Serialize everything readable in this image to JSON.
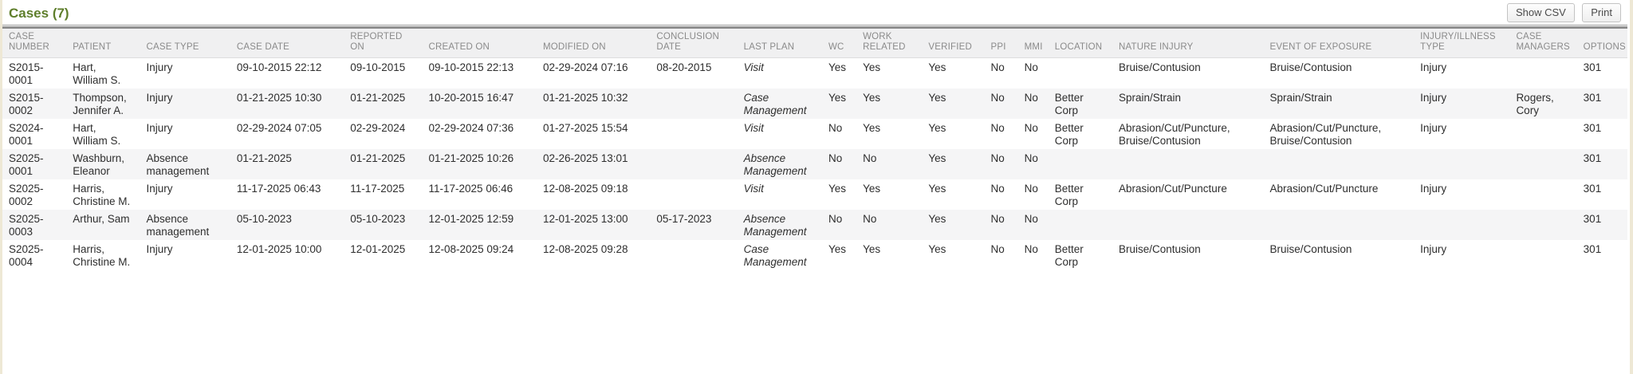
{
  "page": {
    "title": "Cases (7)"
  },
  "toolbar": {
    "show_csv_label": "Show CSV",
    "print_label": "Print"
  },
  "colors": {
    "title_green": "#5e7e2b",
    "header_text": "#8a8a8a",
    "row_stripe": "#f5f5f6",
    "edge_border": "#eee8d5"
  },
  "table": {
    "columns": [
      {
        "id": "case_number",
        "label": "CASE NUMBER"
      },
      {
        "id": "patient",
        "label": "PATIENT"
      },
      {
        "id": "case_type",
        "label": "CASE TYPE"
      },
      {
        "id": "case_date",
        "label": "CASE DATE"
      },
      {
        "id": "reported_on",
        "label": "REPORTED ON"
      },
      {
        "id": "created_on",
        "label": "CREATED ON"
      },
      {
        "id": "modified_on",
        "label": "MODIFIED ON"
      },
      {
        "id": "conclusion_date",
        "label": "CONCLUSION DATE"
      },
      {
        "id": "last_plan",
        "label": "LAST PLAN"
      },
      {
        "id": "wc",
        "label": "WC"
      },
      {
        "id": "work_related",
        "label": "WORK RELATED"
      },
      {
        "id": "verified",
        "label": "VERIFIED"
      },
      {
        "id": "ppi",
        "label": "PPI"
      },
      {
        "id": "mmi",
        "label": "MMI"
      },
      {
        "id": "location",
        "label": "LOCATION"
      },
      {
        "id": "nature_injury",
        "label": "NATURE INJURY"
      },
      {
        "id": "event_of_exposure",
        "label": "EVENT OF EXPOSURE"
      },
      {
        "id": "injury_illness_type",
        "label": "INJURY/ILLNESS TYPE"
      },
      {
        "id": "case_managers",
        "label": "CASE MANAGERS"
      },
      {
        "id": "options",
        "label": "OPTIONS"
      }
    ],
    "rows": [
      {
        "case_number": "S2015-0001",
        "patient": "Hart, William S.",
        "case_type": "Injury",
        "case_date": "09-10-2015 22:12",
        "reported_on": "09-10-2015",
        "created_on": "09-10-2015 22:13",
        "modified_on": "02-29-2024 07:16",
        "conclusion_date": "08-20-2015",
        "last_plan": "Visit",
        "wc": "Yes",
        "work_related": "Yes",
        "verified": "Yes",
        "ppi": "No",
        "mmi": "No",
        "location": "",
        "nature_injury": "Bruise/Contusion",
        "event_of_exposure": "Bruise/Contusion",
        "injury_illness_type": "Injury",
        "case_managers": "",
        "options": "301"
      },
      {
        "case_number": "S2015-0002",
        "patient": "Thompson, Jennifer A.",
        "case_type": "Injury",
        "case_date": "01-21-2025 10:30",
        "reported_on": "01-21-2025",
        "created_on": "10-20-2015 16:47",
        "modified_on": "01-21-2025 10:32",
        "conclusion_date": "",
        "last_plan": "Case Management",
        "wc": "Yes",
        "work_related": "Yes",
        "verified": "Yes",
        "ppi": "No",
        "mmi": "No",
        "location": "Better Corp",
        "nature_injury": "Sprain/Strain",
        "event_of_exposure": "Sprain/Strain",
        "injury_illness_type": "Injury",
        "case_managers": "Rogers, Cory",
        "options": "301"
      },
      {
        "case_number": "S2024-0001",
        "patient": "Hart, William S.",
        "case_type": "Injury",
        "case_date": "02-29-2024 07:05",
        "reported_on": "02-29-2024",
        "created_on": "02-29-2024 07:36",
        "modified_on": "01-27-2025 15:54",
        "conclusion_date": "",
        "last_plan": "Visit",
        "wc": "No",
        "work_related": "Yes",
        "verified": "Yes",
        "ppi": "No",
        "mmi": "No",
        "location": "Better Corp",
        "nature_injury": "Abrasion/Cut/Puncture, Bruise/Contusion",
        "event_of_exposure": "Abrasion/Cut/Puncture, Bruise/Contusion",
        "injury_illness_type": "Injury",
        "case_managers": "",
        "options": "301"
      },
      {
        "case_number": "S2025-0001",
        "patient": "Washburn, Eleanor",
        "case_type": "Absence management",
        "case_date": "01-21-2025",
        "reported_on": "01-21-2025",
        "created_on": "01-21-2025 10:26",
        "modified_on": "02-26-2025 13:01",
        "conclusion_date": "",
        "last_plan": "Absence Management",
        "wc": "No",
        "work_related": "No",
        "verified": "Yes",
        "ppi": "No",
        "mmi": "No",
        "location": "",
        "nature_injury": "",
        "event_of_exposure": "",
        "injury_illness_type": "",
        "case_managers": "",
        "options": "301"
      },
      {
        "case_number": "S2025-0002",
        "patient": "Harris, Christine M.",
        "case_type": "Injury",
        "case_date": "11-17-2025 06:43",
        "reported_on": "11-17-2025",
        "created_on": "11-17-2025 06:46",
        "modified_on": "12-08-2025 09:18",
        "conclusion_date": "",
        "last_plan": "Visit",
        "wc": "Yes",
        "work_related": "Yes",
        "verified": "Yes",
        "ppi": "No",
        "mmi": "No",
        "location": "Better Corp",
        "nature_injury": "Abrasion/Cut/Puncture",
        "event_of_exposure": "Abrasion/Cut/Puncture",
        "injury_illness_type": "Injury",
        "case_managers": "",
        "options": "301"
      },
      {
        "case_number": "S2025-0003",
        "patient": "Arthur, Sam",
        "case_type": "Absence management",
        "case_date": "05-10-2023",
        "reported_on": "05-10-2023",
        "created_on": "12-01-2025 12:59",
        "modified_on": "12-01-2025 13:00",
        "conclusion_date": "05-17-2023",
        "last_plan": "Absence Management",
        "wc": "No",
        "work_related": "No",
        "verified": "Yes",
        "ppi": "No",
        "mmi": "No",
        "location": "",
        "nature_injury": "",
        "event_of_exposure": "",
        "injury_illness_type": "",
        "case_managers": "",
        "options": "301"
      },
      {
        "case_number": "S2025-0004",
        "patient": "Harris, Christine M.",
        "case_type": "Injury",
        "case_date": "12-01-2025 10:00",
        "reported_on": "12-01-2025",
        "created_on": "12-08-2025 09:24",
        "modified_on": "12-08-2025 09:28",
        "conclusion_date": "",
        "last_plan": "Case Management",
        "wc": "Yes",
        "work_related": "Yes",
        "verified": "Yes",
        "ppi": "No",
        "mmi": "No",
        "location": "Better Corp",
        "nature_injury": "Bruise/Contusion",
        "event_of_exposure": "Bruise/Contusion",
        "injury_illness_type": "Injury",
        "case_managers": "",
        "options": "301"
      }
    ]
  }
}
